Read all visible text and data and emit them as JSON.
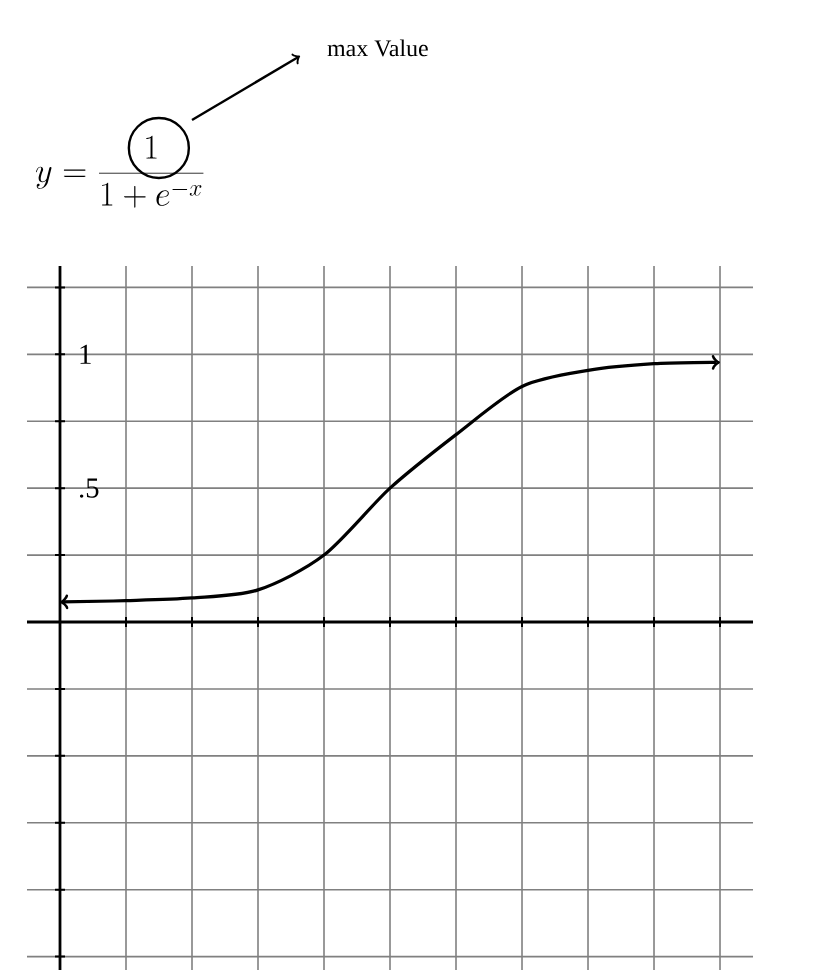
{
  "chart_data": {
    "type": "line",
    "title": "y=\\frac{1}{1+e^{-x}}",
    "annotations": [
      "max Value"
    ],
    "categories": [
      null,
      null,
      null,
      null,
      null,
      null,
      null,
      null,
      null,
      null,
      null
    ],
    "series": [
      {
        "color": "#000000",
        "values": [
          0.075,
          0.08,
          0.09,
          0.12,
          0.25,
          0.5,
          0.7,
          0.88,
          0.94,
          0.965,
          0.97
        ]
      }
    ],
    "ylim": [
      -1.3,
      1.33
    ],
    "yticks": [
      {
        "value": -1.25,
        "label": null
      },
      {
        "value": -1,
        "label": null
      },
      {
        "value": -0.75,
        "label": null
      },
      {
        "value": -0.5,
        "label": null
      },
      {
        "value": -0.25,
        "label": null
      },
      {
        "value": 0.25,
        "label": null
      },
      {
        "value": 0.5,
        "label": ".5"
      },
      {
        "value": 0.75,
        "label": null
      },
      {
        "value": 1,
        "label": "1"
      },
      {
        "value": 1.25,
        "label": null
      }
    ],
    "grid": true,
    "tick_labels": "y"
  }
}
